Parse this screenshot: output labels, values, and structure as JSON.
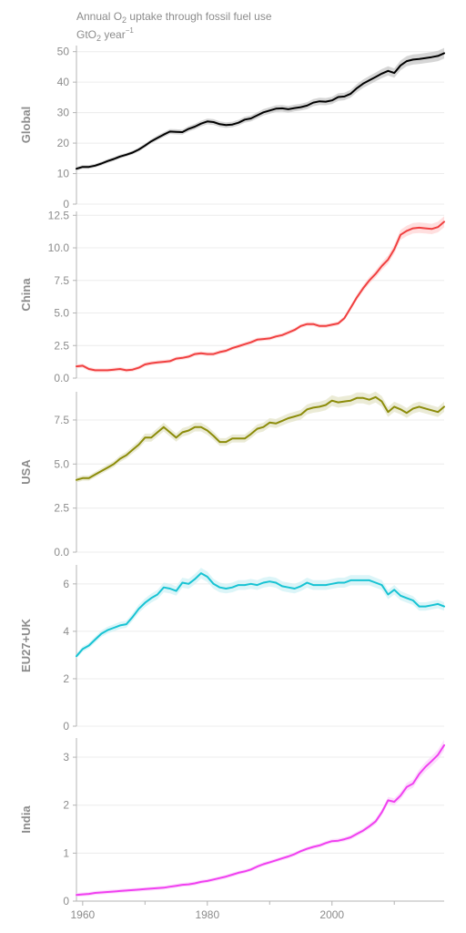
{
  "title": {
    "main": "Annual O",
    "main_sub": "2",
    "main_rest": " uptake through fossil fuel use",
    "unit_prefix": "GtO",
    "unit_sub": "2",
    "unit_rest": " year",
    "unit_sup": "−1"
  },
  "chart_data": [
    {
      "type": "line",
      "panel_label": "Global",
      "color": "#000000",
      "band_color": "#c8c8c8",
      "ylim": [
        0,
        52
      ],
      "yticks": [
        0,
        10,
        20,
        30,
        40,
        50
      ],
      "ytick_labels": [
        "0",
        "10",
        "20",
        "30",
        "40",
        "50"
      ],
      "grid": true,
      "x": [
        1959,
        1960,
        1961,
        1962,
        1963,
        1964,
        1965,
        1966,
        1967,
        1968,
        1969,
        1970,
        1971,
        1972,
        1973,
        1974,
        1975,
        1976,
        1977,
        1978,
        1979,
        1980,
        1981,
        1982,
        1983,
        1984,
        1985,
        1986,
        1987,
        1988,
        1989,
        1990,
        1991,
        1992,
        1993,
        1994,
        1995,
        1996,
        1997,
        1998,
        1999,
        2000,
        2001,
        2002,
        2003,
        2004,
        2005,
        2006,
        2007,
        2008,
        2009,
        2010,
        2011,
        2012,
        2013,
        2014,
        2015,
        2016,
        2017,
        2018
      ],
      "values": [
        11.6,
        12.2,
        12.2,
        12.6,
        13.3,
        14.1,
        14.8,
        15.6,
        16.2,
        16.9,
        17.9,
        19.2,
        20.6,
        21.7,
        22.8,
        23.8,
        23.7,
        23.6,
        24.7,
        25.4,
        26.4,
        27.1,
        26.9,
        26.2,
        25.9,
        26.1,
        26.7,
        27.7,
        28.1,
        29.1,
        30.1,
        30.7,
        31.3,
        31.4,
        31.1,
        31.5,
        31.8,
        32.3,
        33.3,
        33.7,
        33.6,
        34.0,
        35.1,
        35.3,
        36.2,
        38.0,
        39.5,
        40.6,
        41.7,
        42.8,
        43.7,
        43.0,
        45.5,
        46.9,
        47.4,
        47.6,
        47.9,
        48.2,
        48.6,
        49.5
      ]
    },
    {
      "type": "line",
      "panel_label": "China",
      "color": "#f04040",
      "band_color": "#ffd4d4",
      "ylim": [
        0,
        12.8
      ],
      "yticks": [
        0,
        2.5,
        5,
        7.5,
        10,
        12.5
      ],
      "ytick_labels": [
        "0.0",
        "2.5",
        "5.0",
        "7.5",
        "10.0",
        "12.5"
      ],
      "grid": true,
      "x": [
        1959,
        1960,
        1961,
        1962,
        1963,
        1964,
        1965,
        1966,
        1967,
        1968,
        1969,
        1970,
        1971,
        1972,
        1973,
        1974,
        1975,
        1976,
        1977,
        1978,
        1979,
        1980,
        1981,
        1982,
        1983,
        1984,
        1985,
        1986,
        1987,
        1988,
        1989,
        1990,
        1991,
        1992,
        1993,
        1994,
        1995,
        1996,
        1997,
        1998,
        1999,
        2000,
        2001,
        2002,
        2003,
        2004,
        2005,
        2006,
        2007,
        2008,
        2009,
        2010,
        2011,
        2012,
        2013,
        2014,
        2015,
        2016,
        2017,
        2018
      ],
      "values": [
        0.9,
        0.95,
        0.7,
        0.6,
        0.6,
        0.6,
        0.65,
        0.7,
        0.6,
        0.65,
        0.8,
        1.05,
        1.15,
        1.2,
        1.25,
        1.3,
        1.5,
        1.55,
        1.65,
        1.85,
        1.9,
        1.85,
        1.85,
        2.0,
        2.1,
        2.3,
        2.45,
        2.6,
        2.75,
        2.95,
        3.0,
        3.05,
        3.2,
        3.3,
        3.5,
        3.7,
        4.0,
        4.15,
        4.15,
        4.0,
        4.0,
        4.1,
        4.2,
        4.6,
        5.4,
        6.2,
        6.9,
        7.5,
        8.0,
        8.6,
        9.1,
        9.9,
        11.0,
        11.3,
        11.5,
        11.55,
        11.5,
        11.45,
        11.6,
        12.0
      ]
    },
    {
      "type": "line",
      "panel_label": "USA",
      "color": "#8c8c0a",
      "band_color": "#e4e4c8",
      "ylim": [
        0,
        9.1
      ],
      "yticks": [
        0,
        2.5,
        5,
        7.5
      ],
      "ytick_labels": [
        "0.0",
        "2.5",
        "5.0",
        "7.5"
      ],
      "grid": true,
      "x": [
        1959,
        1960,
        1961,
        1962,
        1963,
        1964,
        1965,
        1966,
        1967,
        1968,
        1969,
        1970,
        1971,
        1972,
        1973,
        1974,
        1975,
        1976,
        1977,
        1978,
        1979,
        1980,
        1981,
        1982,
        1983,
        1984,
        1985,
        1986,
        1987,
        1988,
        1989,
        1990,
        1991,
        1992,
        1993,
        1994,
        1995,
        1996,
        1997,
        1998,
        1999,
        2000,
        2001,
        2002,
        2003,
        2004,
        2005,
        2006,
        2007,
        2008,
        2009,
        2010,
        2011,
        2012,
        2013,
        2014,
        2015,
        2016,
        2017,
        2018
      ],
      "values": [
        4.1,
        4.2,
        4.2,
        4.4,
        4.6,
        4.8,
        5.0,
        5.3,
        5.5,
        5.8,
        6.1,
        6.5,
        6.5,
        6.8,
        7.1,
        6.8,
        6.5,
        6.8,
        6.9,
        7.1,
        7.1,
        6.9,
        6.6,
        6.25,
        6.25,
        6.45,
        6.45,
        6.45,
        6.7,
        7.0,
        7.1,
        7.35,
        7.3,
        7.45,
        7.6,
        7.7,
        7.8,
        8.1,
        8.2,
        8.25,
        8.35,
        8.6,
        8.5,
        8.55,
        8.6,
        8.75,
        8.75,
        8.65,
        8.8,
        8.55,
        7.95,
        8.25,
        8.1,
        7.9,
        8.15,
        8.25,
        8.15,
        8.05,
        7.95,
        8.25
      ]
    },
    {
      "type": "line",
      "panel_label": "EU27+UK",
      "color": "#17c3d3",
      "band_color": "#d0f2f5",
      "ylim": [
        0,
        6.8
      ],
      "yticks": [
        0,
        2,
        4,
        6
      ],
      "ytick_labels": [
        "0",
        "2",
        "4",
        "6"
      ],
      "grid": true,
      "x": [
        1959,
        1960,
        1961,
        1962,
        1963,
        1964,
        1965,
        1966,
        1967,
        1968,
        1969,
        1970,
        1971,
        1972,
        1973,
        1974,
        1975,
        1976,
        1977,
        1978,
        1979,
        1980,
        1981,
        1982,
        1983,
        1984,
        1985,
        1986,
        1987,
        1988,
        1989,
        1990,
        1991,
        1992,
        1993,
        1994,
        1995,
        1996,
        1997,
        1998,
        1999,
        2000,
        2001,
        2002,
        2003,
        2004,
        2005,
        2006,
        2007,
        2008,
        2009,
        2010,
        2011,
        2012,
        2013,
        2014,
        2015,
        2016,
        2017,
        2018
      ],
      "values": [
        2.95,
        3.25,
        3.4,
        3.65,
        3.9,
        4.05,
        4.15,
        4.25,
        4.3,
        4.6,
        4.95,
        5.2,
        5.4,
        5.55,
        5.85,
        5.8,
        5.7,
        6.05,
        6.0,
        6.2,
        6.45,
        6.3,
        6.0,
        5.85,
        5.8,
        5.85,
        5.95,
        5.95,
        6.0,
        5.95,
        6.05,
        6.1,
        6.05,
        5.9,
        5.85,
        5.8,
        5.9,
        6.05,
        5.95,
        5.95,
        5.95,
        6.0,
        6.05,
        6.05,
        6.15,
        6.15,
        6.15,
        6.15,
        6.05,
        5.95,
        5.55,
        5.75,
        5.5,
        5.4,
        5.3,
        5.05,
        5.05,
        5.1,
        5.15,
        5.05
      ]
    },
    {
      "type": "line",
      "panel_label": "India",
      "color": "#f040f0",
      "band_color": "#fbd4fb",
      "ylim": [
        0,
        3.4
      ],
      "yticks": [
        0,
        1,
        2,
        3
      ],
      "ytick_labels": [
        "0",
        "1",
        "2",
        "3"
      ],
      "grid": true,
      "x": [
        1959,
        1960,
        1961,
        1962,
        1963,
        1964,
        1965,
        1966,
        1967,
        1968,
        1969,
        1970,
        1971,
        1972,
        1973,
        1974,
        1975,
        1976,
        1977,
        1978,
        1979,
        1980,
        1981,
        1982,
        1983,
        1984,
        1985,
        1986,
        1987,
        1988,
        1989,
        1990,
        1991,
        1992,
        1993,
        1994,
        1995,
        1996,
        1997,
        1998,
        1999,
        2000,
        2001,
        2002,
        2003,
        2004,
        2005,
        2006,
        2007,
        2008,
        2009,
        2010,
        2011,
        2012,
        2013,
        2014,
        2015,
        2016,
        2017,
        2018
      ],
      "values": [
        0.13,
        0.14,
        0.15,
        0.17,
        0.18,
        0.19,
        0.2,
        0.21,
        0.22,
        0.23,
        0.24,
        0.25,
        0.26,
        0.27,
        0.28,
        0.3,
        0.32,
        0.34,
        0.35,
        0.37,
        0.4,
        0.42,
        0.45,
        0.48,
        0.51,
        0.55,
        0.59,
        0.62,
        0.66,
        0.72,
        0.77,
        0.81,
        0.85,
        0.89,
        0.93,
        0.98,
        1.04,
        1.09,
        1.13,
        1.16,
        1.21,
        1.25,
        1.26,
        1.29,
        1.33,
        1.4,
        1.47,
        1.56,
        1.66,
        1.85,
        2.1,
        2.07,
        2.2,
        2.38,
        2.45,
        2.65,
        2.8,
        2.92,
        3.05,
        3.25
      ]
    }
  ],
  "x_axis": {
    "xlim": [
      1959,
      2018
    ],
    "ticks": [
      1960,
      1980,
      2000
    ],
    "tick_labels": [
      "1960",
      "1980",
      "2000"
    ],
    "minor_ticks": [
      1970,
      1990,
      2010
    ]
  }
}
